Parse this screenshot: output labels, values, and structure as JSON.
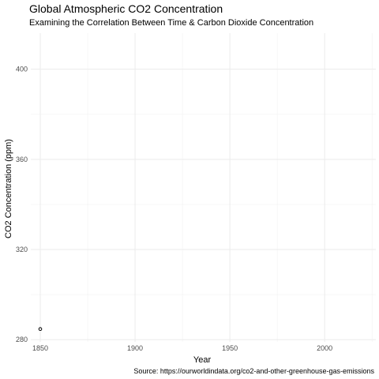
{
  "chart_data": {
    "type": "scatter",
    "title": "Global Atmospheric CO2 Concentration",
    "subtitle": "Examining the Correlation Between Time & Carbon Dioxide Concentration",
    "xlabel": "Year",
    "ylabel": "CO2 Concentration (ppm)",
    "caption": "Source: https://ourworldindata.org/co2-and-other-greenhouse-gas-emissions",
    "xlim": [
      1845,
      2027
    ],
    "ylim": [
      279,
      416
    ],
    "x_ticks": [
      1850,
      1900,
      1950,
      2000
    ],
    "x_tick_labels": [
      "1850",
      "1900",
      "1950",
      "2000"
    ],
    "x_minor_ticks": [
      1875,
      1925,
      1975,
      2025
    ],
    "y_ticks": [
      280,
      320,
      360,
      400
    ],
    "y_tick_labels": [
      "280",
      "320",
      "360",
      "400"
    ],
    "y_minor_ticks": [
      300,
      340,
      380
    ],
    "grid": true,
    "colors": {
      "point_stroke": "#000000",
      "grid_major": "#ebebeb",
      "grid_minor": "#f2f2f2"
    },
    "series": [
      {
        "points": [
          {
            "x": 1850,
            "y": 284.7
          }
        ]
      }
    ]
  }
}
